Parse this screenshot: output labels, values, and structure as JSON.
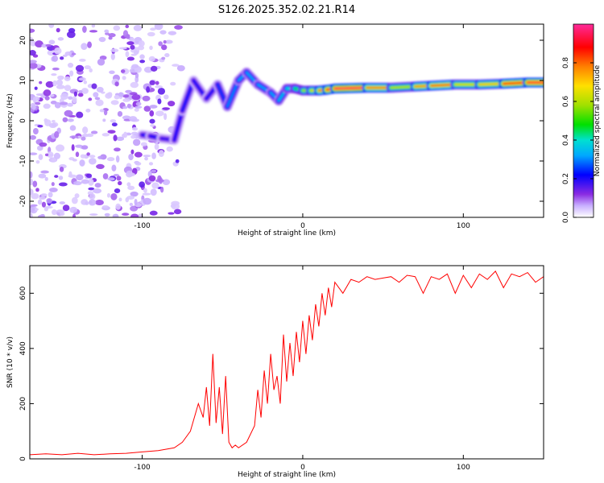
{
  "title": "S126.2025.352.02.21.R14",
  "chart_data": [
    {
      "type": "heatmap",
      "title": "S126.2025.352.02.21.R14",
      "xlabel": "Height of straight line (km)",
      "ylabel": "Frequency (Hz)",
      "xlim": [
        -170,
        150
      ],
      "ylim": [
        -24,
        24
      ],
      "xticks": [
        -100,
        0,
        100
      ],
      "yticks": [
        -20,
        -10,
        0,
        10,
        20
      ],
      "colorbar": {
        "label": "Normalized spectral amplitude",
        "range": [
          0.0,
          1.0
        ],
        "ticks": [
          0.0,
          0.2,
          0.4,
          0.6,
          0.8
        ],
        "colormap": [
          "#ffffff",
          "#e6d8ff",
          "#b98cf5",
          "#8a2be2",
          "#5a00e6",
          "#0000ff",
          "#00a0ff",
          "#00e0e0",
          "#00e000",
          "#b0e000",
          "#ffd000",
          "#ff8000",
          "#ff0000",
          "#ff1f8f"
        ]
      },
      "ridge": [
        {
          "x": -100,
          "f": -3.5,
          "amp": 0.2
        },
        {
          "x": -95,
          "f": -3.8,
          "amp": 0.22
        },
        {
          "x": -88,
          "f": -4.4,
          "amp": 0.2
        },
        {
          "x": -80,
          "f": -4.8,
          "amp": 0.18
        },
        {
          "x": -75,
          "f": 2.5,
          "amp": 0.25
        },
        {
          "x": -68,
          "f": 10,
          "amp": 0.2
        },
        {
          "x": -60,
          "f": 5.5,
          "amp": 0.22
        },
        {
          "x": -53,
          "f": 9,
          "amp": 0.2
        },
        {
          "x": -47,
          "f": 3.5,
          "amp": 0.3
        },
        {
          "x": -40,
          "f": 10,
          "amp": 0.3
        },
        {
          "x": -35,
          "f": 12,
          "amp": 0.35
        },
        {
          "x": -28,
          "f": 9,
          "amp": 0.3
        },
        {
          "x": -20,
          "f": 7,
          "amp": 0.35
        },
        {
          "x": -15,
          "f": 5,
          "amp": 0.3
        },
        {
          "x": -10,
          "f": 8,
          "amp": 0.4
        },
        {
          "x": -5,
          "f": 8,
          "amp": 0.4
        },
        {
          "x": 0,
          "f": 7.5,
          "amp": 0.55
        },
        {
          "x": 5,
          "f": 7.5,
          "amp": 0.6
        },
        {
          "x": 10,
          "f": 7.5,
          "amp": 0.7
        },
        {
          "x": 15,
          "f": 7.7,
          "amp": 0.85
        },
        {
          "x": 20,
          "f": 8,
          "amp": 0.95
        },
        {
          "x": 40,
          "f": 8.2,
          "amp": 0.95
        },
        {
          "x": 55,
          "f": 8.2,
          "amp": 0.6
        },
        {
          "x": 70,
          "f": 8.5,
          "amp": 0.6
        },
        {
          "x": 80,
          "f": 8.7,
          "amp": 0.9
        },
        {
          "x": 95,
          "f": 9,
          "amp": 0.7
        },
        {
          "x": 110,
          "f": 9,
          "amp": 0.6
        },
        {
          "x": 125,
          "f": 9.2,
          "amp": 0.8
        },
        {
          "x": 140,
          "f": 9.5,
          "amp": 0.95
        },
        {
          "x": 150,
          "f": 9.5,
          "amp": 0.9
        }
      ]
    },
    {
      "type": "line",
      "xlabel": "Height of straight line (km)",
      "ylabel": "SNR (10 * v/v)",
      "xlim": [
        -170,
        150
      ],
      "ylim": [
        0,
        700
      ],
      "xticks": [
        -100,
        0,
        100
      ],
      "yticks": [
        0,
        200,
        400,
        600
      ],
      "series": [
        {
          "color": "#ff0000",
          "x": [
            -170,
            -160,
            -150,
            -140,
            -130,
            -120,
            -110,
            -100,
            -90,
            -80,
            -75,
            -70,
            -65,
            -62,
            -60,
            -58,
            -56,
            -54,
            -52,
            -50,
            -48,
            -46,
            -44,
            -42,
            -40,
            -35,
            -30,
            -28,
            -26,
            -24,
            -22,
            -20,
            -18,
            -16,
            -14,
            -12,
            -10,
            -8,
            -6,
            -4,
            -2,
            0,
            2,
            4,
            6,
            8,
            10,
            12,
            14,
            16,
            18,
            20,
            25,
            30,
            35,
            40,
            45,
            50,
            55,
            60,
            65,
            70,
            75,
            80,
            85,
            90,
            95,
            100,
            105,
            110,
            115,
            120,
            125,
            130,
            135,
            140,
            145,
            150
          ],
          "y": [
            15,
            18,
            15,
            20,
            15,
            18,
            20,
            25,
            30,
            40,
            60,
            100,
            200,
            150,
            260,
            120,
            380,
            130,
            260,
            90,
            300,
            60,
            40,
            50,
            40,
            60,
            120,
            250,
            150,
            320,
            200,
            380,
            250,
            300,
            200,
            450,
            280,
            420,
            300,
            460,
            350,
            500,
            380,
            520,
            430,
            560,
            480,
            600,
            520,
            620,
            550,
            640,
            600,
            650,
            640,
            660,
            650,
            655,
            660,
            640,
            665,
            660,
            600,
            660,
            650,
            670,
            600,
            665,
            620,
            670,
            650,
            680,
            620,
            670,
            660,
            675,
            640,
            660
          ]
        }
      ]
    }
  ]
}
